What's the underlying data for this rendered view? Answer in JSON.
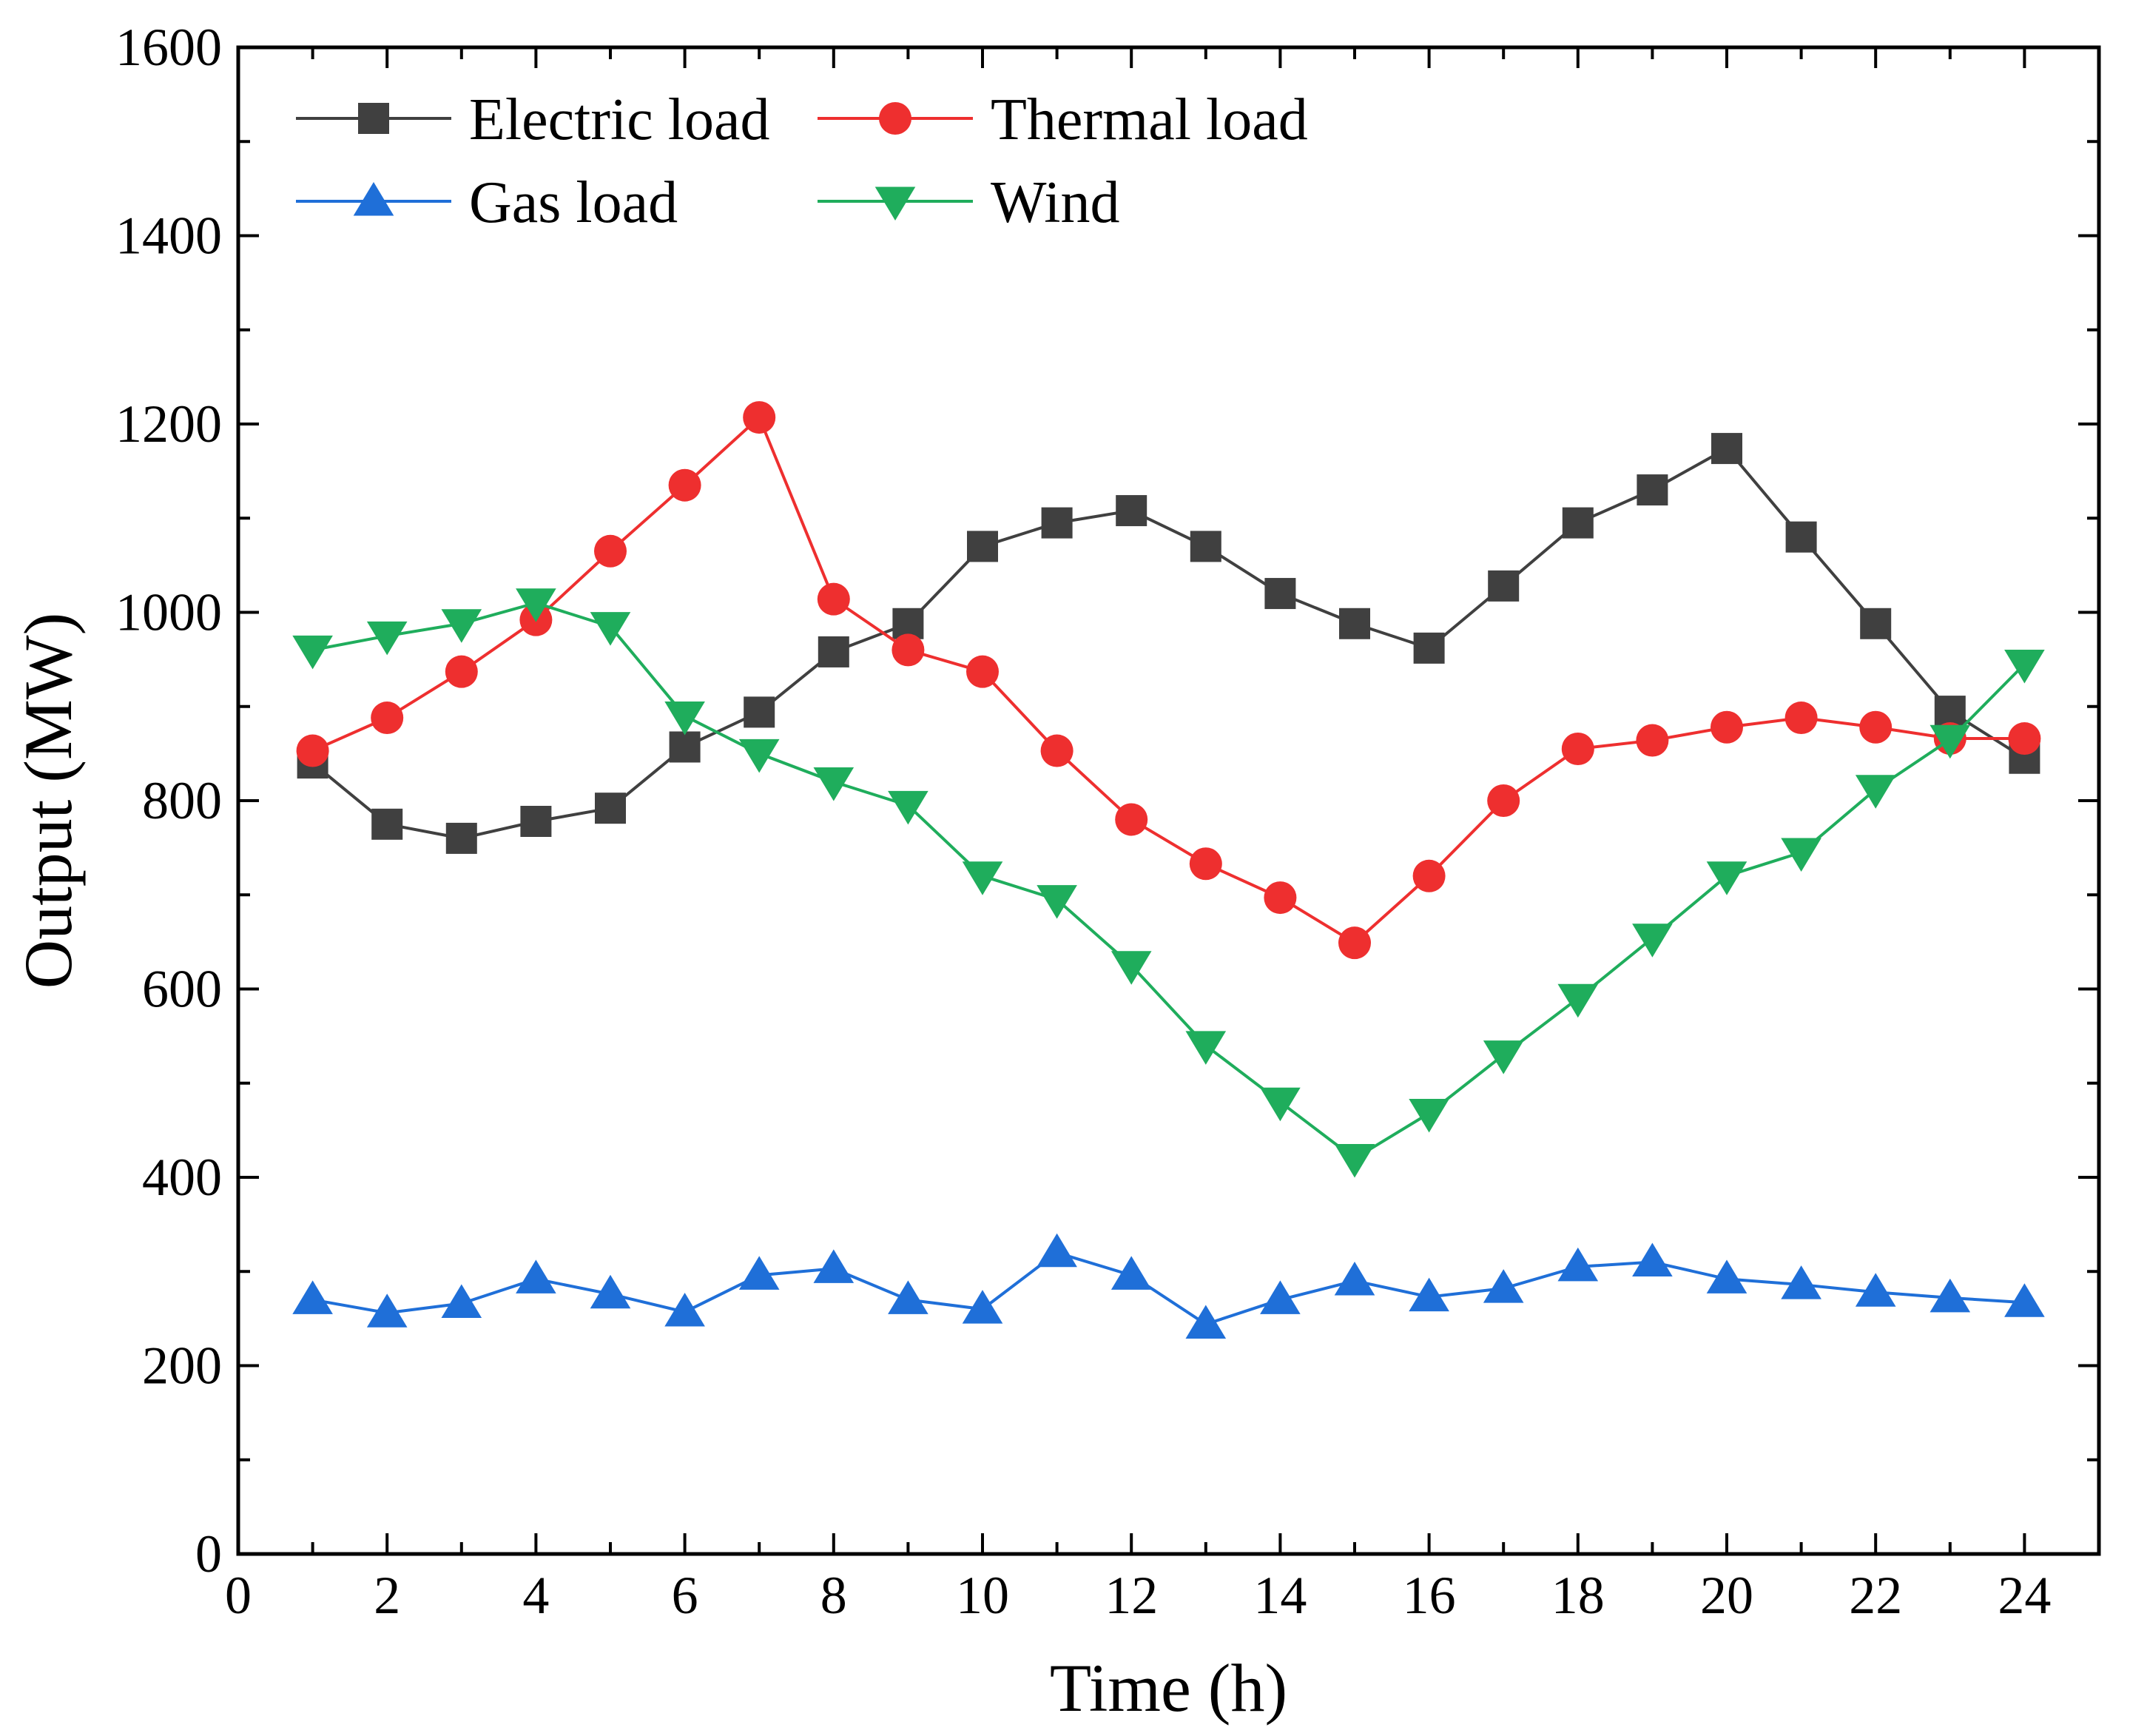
{
  "chart_data": {
    "type": "line",
    "title": "",
    "xlabel": "Time (h)",
    "ylabel": "Output (MW)",
    "xlim": [
      0,
      25
    ],
    "ylim": [
      0,
      1600
    ],
    "x_ticks": [
      0,
      2,
      4,
      6,
      8,
      10,
      12,
      14,
      16,
      18,
      20,
      22,
      24
    ],
    "y_ticks": [
      0,
      200,
      400,
      600,
      800,
      1000,
      1200,
      1400,
      1600
    ],
    "grid": false,
    "legend_position": "top-left",
    "x": [
      1,
      2,
      3,
      4,
      5,
      6,
      7,
      8,
      9,
      10,
      11,
      12,
      13,
      14,
      15,
      16,
      17,
      18,
      19,
      20,
      21,
      22,
      23,
      24
    ],
    "series": [
      {
        "name": "Electric load",
        "color": "#404040",
        "marker": "square",
        "values": [
          840,
          775,
          760,
          778,
          792,
          857,
          894,
          958,
          988,
          1070,
          1095,
          1108,
          1070,
          1020,
          988,
          962,
          1028,
          1095,
          1130,
          1174,
          1080,
          988,
          895,
          845
        ]
      },
      {
        "name": "Thermal load",
        "color": "#ee2f2f",
        "marker": "circle",
        "values": [
          853,
          888,
          937,
          992,
          1065,
          1135,
          1207,
          1014,
          960,
          937,
          853,
          780,
          733,
          697,
          649,
          720,
          800,
          855,
          864,
          878,
          888,
          878,
          866,
          866
        ]
      },
      {
        "name": "Gas load",
        "color": "#1f6fd8",
        "marker": "triangle-up",
        "values": [
          270,
          256,
          266,
          292,
          276,
          257,
          296,
          303,
          270,
          260,
          320,
          296,
          244,
          270,
          290,
          273,
          282,
          305,
          310,
          292,
          286,
          278,
          272,
          267
        ]
      },
      {
        "name": "Wind",
        "color": "#1fad5c",
        "marker": "triangle-down",
        "values": [
          960,
          975,
          988,
          1010,
          985,
          890,
          850,
          820,
          795,
          720,
          695,
          625,
          540,
          480,
          420,
          468,
          530,
          590,
          654,
          720,
          745,
          812,
          865,
          945
        ]
      }
    ]
  }
}
